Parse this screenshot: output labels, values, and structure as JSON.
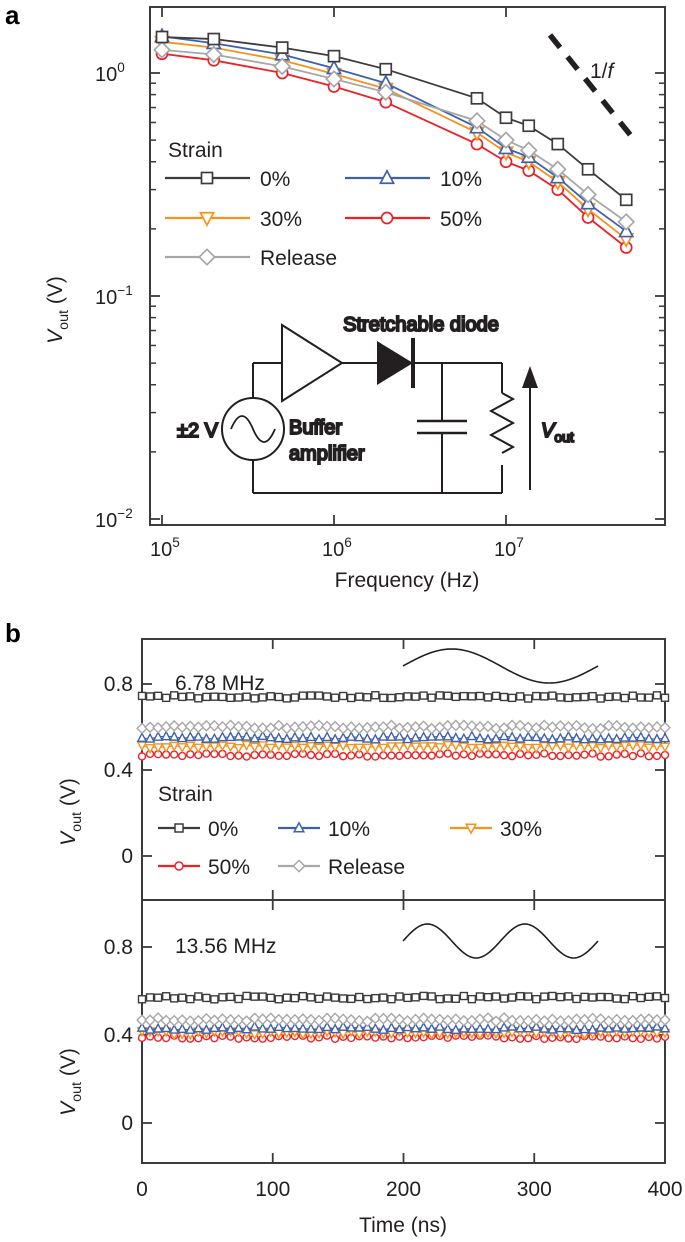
{
  "figure": {
    "panels": {
      "a_letter": "a",
      "b_letter": "b"
    },
    "colors": {
      "0%": "#3c3c3e",
      "10%": "#3e61ac",
      "30%": "#f6921e",
      "50%": "#ec2127",
      "Release": "#a7a7a7",
      "axis": "#3b3b3c",
      "text": "#231f20"
    },
    "markers": {
      "0%": "square",
      "10%": "triangle-up",
      "30%": "triangle-down",
      "50%": "circle",
      "Release": "diamond"
    },
    "panel_a": {
      "chart_data": {
        "type": "line",
        "title": "",
        "xlabel": "Frequency (Hz)",
        "ylabel": "Vout (V)",
        "x_scale": "log",
        "y_scale": "log",
        "x_ticks": [
          {
            "base": "10",
            "exp": "5"
          },
          {
            "base": "10",
            "exp": "6"
          },
          {
            "base": "10",
            "exp": "7"
          }
        ],
        "x_tick_values_hz": [
          100000,
          1000000,
          10000000
        ],
        "xlim_hz": [
          86000,
          84000000
        ],
        "y_ticks": [
          {
            "base": "10",
            "exp": "0"
          },
          {
            "base": "10",
            "exp": "−1"
          },
          {
            "base": "10",
            "exp": "−2"
          }
        ],
        "y_tick_values_v": [
          1,
          0.1,
          0.01
        ],
        "ylim_v": [
          0.0095,
          1.95
        ],
        "frequencies_mhz": [
          0.1,
          0.2,
          0.5,
          1,
          2,
          6.78,
          10,
          13.56,
          20,
          30,
          50
        ],
        "series": [
          {
            "name": "0%",
            "values_v": [
              1.45,
              1.42,
              1.3,
              1.19,
              1.04,
              0.77,
              0.63,
              0.58,
              0.48,
              0.37,
              0.27
            ]
          },
          {
            "name": "10%",
            "values_v": [
              1.46,
              1.36,
              1.21,
              1.05,
              0.9,
              0.57,
              0.46,
              0.42,
              0.34,
              0.26,
              0.195
            ]
          },
          {
            "name": "30%",
            "values_v": [
              1.38,
              1.3,
              1.14,
              0.99,
              0.85,
              0.54,
              0.44,
              0.4,
              0.325,
              0.245,
              0.18
            ]
          },
          {
            "name": "50%",
            "values_v": [
              1.22,
              1.14,
              1.0,
              0.87,
              0.74,
              0.48,
              0.4,
              0.365,
              0.3,
              0.225,
              0.165
            ]
          },
          {
            "name": "Release",
            "values_v": [
              1.27,
              1.21,
              1.07,
              0.94,
              0.82,
              0.61,
              0.5,
              0.45,
              0.37,
              0.285,
              0.215
            ]
          }
        ],
        "annotation": {
          "prefix": "1/",
          "italic": "f"
        },
        "legend_position": "inside-left"
      },
      "legend": {
        "title": "Strain",
        "rows": [
          [
            "0%",
            "10%"
          ],
          [
            "30%",
            "50%"
          ],
          [
            "Release"
          ]
        ]
      },
      "inset": {
        "source_label": "±2 V",
        "amp_label_line1": "Buffer",
        "amp_label_line2": "amplifier",
        "diode_label": "Stretchable diode",
        "out_v": "V",
        "out_sub": "out"
      },
      "ylabel_parts": {
        "v": "V",
        "sub": "out",
        "unit": " (V)"
      }
    },
    "panel_b": {
      "chart_data": {
        "type": "line",
        "xlabel": "Time (ns)",
        "ylabel": "Vout (V)",
        "x_ticks": [
          "0",
          "100",
          "200",
          "300",
          "400"
        ],
        "x_tick_values_ns": [
          0,
          100,
          200,
          300,
          400
        ],
        "xlim_ns": [
          0,
          400
        ],
        "y_ticks": [
          "0",
          "0.4",
          "0.8"
        ],
        "y_tick_values_v": [
          0,
          0.4,
          0.8
        ],
        "noise_v": 0.008,
        "n_points": 66,
        "subplots": [
          {
            "title": "6.78 MHz",
            "sine_cycles": 1,
            "ylim_v": [
              -0.205,
              1.01
            ],
            "levels_v": {
              "0%": 0.74,
              "10%": 0.55,
              "30%": 0.51,
              "50%": 0.47,
              "Release": 0.6
            }
          },
          {
            "title": "13.56 MHz",
            "sine_cycles": 2,
            "ylim_v": [
              -0.18,
              1.015
            ],
            "levels_v": {
              "0%": 0.57,
              "10%": 0.43,
              "30%": 0.41,
              "50%": 0.39,
              "Release": 0.47
            }
          }
        ]
      },
      "legend": {
        "title": "Strain",
        "rows": [
          [
            "0%",
            "10%",
            "30%"
          ],
          [
            "50%",
            "Release"
          ]
        ]
      },
      "ylabel_parts": {
        "v": "V",
        "sub": "out",
        "unit": " (V)"
      }
    }
  }
}
